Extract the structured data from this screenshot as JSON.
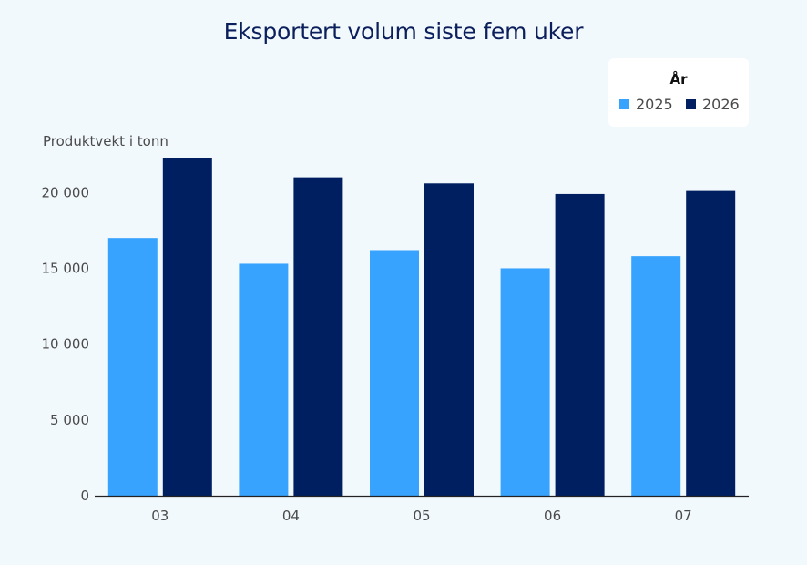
{
  "chart_data": {
    "type": "bar",
    "title": "Eksportert volum siste fem uker",
    "ylabel": "Produktvekt i tonn",
    "xlabel": "",
    "categories": [
      "03",
      "04",
      "05",
      "06",
      "07"
    ],
    "series": [
      {
        "name": "2025",
        "color": "#37a3ff",
        "values": [
          17000,
          15300,
          16200,
          15000,
          15800
        ]
      },
      {
        "name": "2026",
        "color": "#001f61",
        "values": [
          22300,
          21000,
          20600,
          19900,
          20100
        ]
      }
    ],
    "ylim": [
      0,
      22300
    ],
    "yticks": [
      {
        "value": 0,
        "label": "0"
      },
      {
        "value": 5000,
        "label": "5 000"
      },
      {
        "value": 10000,
        "label": "10 000"
      },
      {
        "value": 15000,
        "label": "15 000"
      },
      {
        "value": 20000,
        "label": "20 000"
      }
    ],
    "legend": {
      "title": "År",
      "placement": "top-right"
    },
    "grid": false
  }
}
